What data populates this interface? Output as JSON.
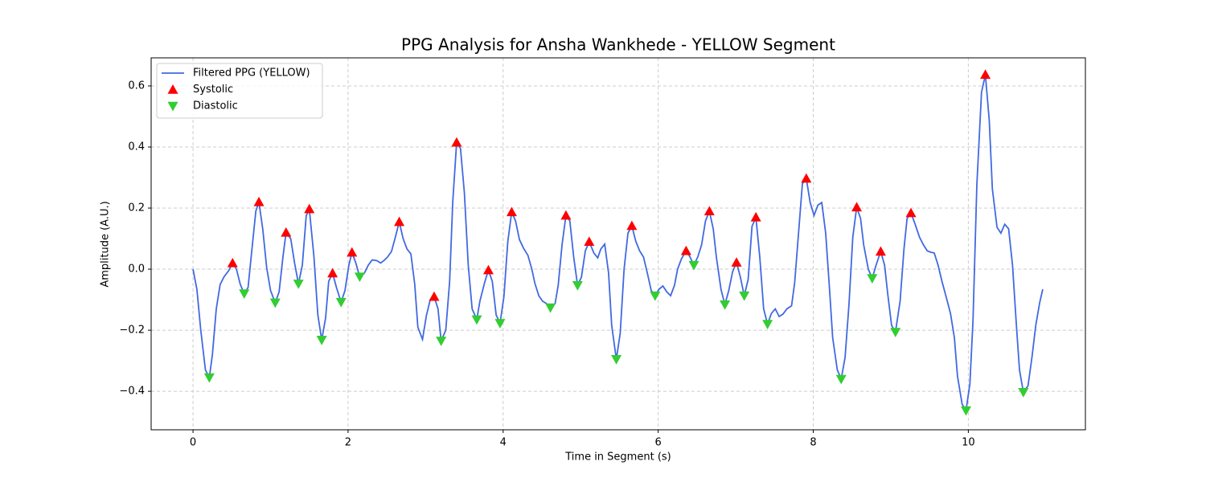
{
  "chart_data": {
    "type": "line",
    "title": "PPG Analysis for Ansha Wankhede - YELLOW Segment",
    "xlabel": "Time in Segment (s)",
    "ylabel": "Amplitude (A.U.)",
    "xlim": [
      -0.54,
      11.51
    ],
    "ylim": [
      -0.526,
      0.692
    ],
    "xticks": [
      0,
      2,
      4,
      6,
      8,
      10
    ],
    "yticks": [
      {
        "value": -0.4,
        "label": "−0.4"
      },
      {
        "value": -0.2,
        "label": "−0.2"
      },
      {
        "value": 0,
        "label": "0.0"
      },
      0.2,
      0.4,
      0.6
    ],
    "grid": true,
    "legend": "upper left",
    "series": [
      {
        "name": "Filtered PPG (YELLOW)",
        "color": "#4169e1",
        "marker": "line",
        "x": [
          0,
          0.05,
          0.1,
          0.16,
          0.21,
          0.25,
          0.3,
          0.35,
          0.4,
          0.46,
          0.51,
          0.56,
          0.61,
          0.66,
          0.71,
          0.76,
          0.81,
          0.85,
          0.9,
          0.95,
          1.0,
          1.06,
          1.11,
          1.16,
          1.2,
          1.26,
          1.31,
          1.36,
          1.41,
          1.46,
          1.5,
          1.56,
          1.61,
          1.66,
          1.71,
          1.75,
          1.8,
          1.85,
          1.91,
          1.96,
          2.01,
          2.05,
          2.1,
          2.15,
          2.21,
          2.26,
          2.31,
          2.37,
          2.42,
          2.47,
          2.51,
          2.56,
          2.61,
          2.66,
          2.71,
          2.76,
          2.81,
          2.86,
          2.9,
          2.96,
          3.01,
          3.06,
          3.11,
          3.16,
          3.2,
          3.26,
          3.31,
          3.35,
          3.4,
          3.45,
          3.5,
          3.55,
          3.6,
          3.66,
          3.7,
          3.76,
          3.81,
          3.86,
          3.91,
          3.96,
          4.01,
          4.06,
          4.11,
          4.16,
          4.21,
          4.26,
          4.32,
          4.37,
          4.41,
          4.46,
          4.51,
          4.56,
          4.61,
          4.67,
          4.71,
          4.76,
          4.81,
          4.86,
          4.91,
          4.96,
          5.01,
          5.06,
          5.11,
          5.17,
          5.22,
          5.26,
          5.31,
          5.36,
          5.4,
          5.46,
          5.51,
          5.56,
          5.61,
          5.66,
          5.71,
          5.76,
          5.81,
          5.86,
          5.91,
          5.96,
          6.01,
          6.06,
          6.11,
          6.16,
          6.21,
          6.25,
          6.3,
          6.36,
          6.41,
          6.46,
          6.51,
          6.56,
          6.61,
          6.66,
          6.71,
          6.75,
          6.81,
          6.86,
          6.91,
          6.96,
          7.01,
          7.06,
          7.11,
          7.16,
          7.21,
          7.26,
          7.31,
          7.36,
          7.41,
          7.46,
          7.51,
          7.56,
          7.61,
          7.66,
          7.72,
          7.76,
          7.81,
          7.86,
          7.91,
          7.96,
          8.01,
          8.06,
          8.11,
          8.16,
          8.21,
          8.25,
          8.31,
          8.36,
          8.41,
          8.46,
          8.51,
          8.56,
          8.61,
          8.65,
          8.71,
          8.76,
          8.81,
          8.87,
          8.92,
          8.96,
          9.01,
          9.06,
          9.12,
          9.17,
          9.21,
          9.26,
          9.31,
          9.37,
          9.42,
          9.47,
          9.52,
          9.56,
          9.61,
          9.66,
          9.71,
          9.77,
          9.82,
          9.86,
          9.92,
          9.97,
          10.02,
          10.06,
          10.11,
          10.17,
          10.22,
          10.27,
          10.31,
          10.37,
          10.42,
          10.47,
          10.52,
          10.57,
          10.62,
          10.66,
          10.71,
          10.77,
          10.82,
          10.87,
          10.92,
          10.96
        ],
        "values": [
          0,
          -0.066,
          -0.2,
          -0.33,
          -0.355,
          -0.28,
          -0.13,
          -0.05,
          -0.025,
          -0.005,
          0.02,
          0,
          -0.05,
          -0.08,
          -0.06,
          0.065,
          0.19,
          0.22,
          0.13,
          0.005,
          -0.07,
          -0.11,
          -0.075,
          0.04,
          0.12,
          0.1,
          0.02,
          -0.048,
          0.013,
          0.175,
          0.197,
          0.04,
          -0.15,
          -0.232,
          -0.16,
          -0.04,
          -0.013,
          -0.06,
          -0.108,
          -0.07,
          0.013,
          0.055,
          0.02,
          -0.025,
          -0.013,
          0.013,
          0.03,
          0.028,
          0.02,
          0.03,
          0.04,
          0.058,
          0.105,
          0.155,
          0.1,
          0.066,
          0.05,
          -0.05,
          -0.19,
          -0.23,
          -0.152,
          -0.1,
          -0.09,
          -0.13,
          -0.235,
          -0.2,
          -0.04,
          0.22,
          0.415,
          0.395,
          0.25,
          0.013,
          -0.13,
          -0.165,
          -0.105,
          -0.045,
          -0.003,
          -0.04,
          -0.15,
          -0.177,
          -0.09,
          0.09,
          0.187,
          0.158,
          0.097,
          0.07,
          0.045,
          0,
          -0.047,
          -0.087,
          -0.105,
          -0.113,
          -0.126,
          -0.113,
          -0.053,
          0.08,
          0.176,
          0.158,
          0.04,
          -0.053,
          -0.026,
          0.06,
          0.09,
          0.053,
          0.037,
          0.066,
          0.082,
          -0.013,
          -0.184,
          -0.295,
          -0.21,
          0,
          0.118,
          0.142,
          0.092,
          0.06,
          0.04,
          -0.013,
          -0.07,
          -0.087,
          -0.066,
          -0.055,
          -0.074,
          -0.087,
          -0.053,
          0,
          0.034,
          0.06,
          0.04,
          0.013,
          0.04,
          0.08,
          0.158,
          0.19,
          0.132,
          0.04,
          -0.066,
          -0.116,
          -0.07,
          -0.008,
          0.022,
          -0.026,
          -0.087,
          -0.034,
          0.14,
          0.17,
          0.04,
          -0.13,
          -0.18,
          -0.145,
          -0.13,
          -0.155,
          -0.147,
          -0.13,
          -0.12,
          -0.045,
          0.118,
          0.28,
          0.297,
          0.218,
          0.176,
          0.21,
          0.218,
          0.118,
          -0.066,
          -0.224,
          -0.33,
          -0.36,
          -0.29,
          -0.118,
          0.105,
          0.203,
          0.166,
          0.08,
          0,
          -0.03,
          0.013,
          0.058,
          0.013,
          -0.08,
          -0.184,
          -0.206,
          -0.105,
          0.066,
          0.166,
          0.184,
          0.15,
          0.105,
          0.08,
          0.06,
          0.055,
          0.053,
          0.013,
          -0.04,
          -0.087,
          -0.145,
          -0.224,
          -0.35,
          -0.442,
          -0.463,
          -0.376,
          -0.17,
          0.276,
          0.579,
          0.637,
          0.487,
          0.263,
          0.137,
          0.118,
          0.147,
          0.132,
          0.013,
          -0.184,
          -0.33,
          -0.403,
          -0.382,
          -0.29,
          -0.184,
          -0.11,
          -0.066
        ]
      },
      {
        "name": "Systolic",
        "color": "#ff0000",
        "marker": "^",
        "x": [
          0.51,
          0.85,
          1.2,
          1.5,
          1.8,
          2.05,
          2.66,
          3.11,
          3.4,
          3.81,
          4.11,
          4.81,
          5.11,
          5.66,
          6.36,
          6.66,
          7.01,
          7.26,
          7.91,
          8.56,
          8.87,
          9.26,
          10.22
        ],
        "values": [
          0.02,
          0.22,
          0.12,
          0.197,
          -0.013,
          0.055,
          0.155,
          -0.09,
          0.415,
          -0.003,
          0.187,
          0.176,
          0.09,
          0.142,
          0.06,
          0.19,
          0.022,
          0.17,
          0.297,
          0.203,
          0.058,
          0.184,
          0.637
        ]
      },
      {
        "name": "Diastolic",
        "color": "#32cd32",
        "marker": "v",
        "x": [
          0.21,
          0.66,
          1.06,
          1.36,
          1.66,
          1.91,
          2.15,
          3.2,
          3.66,
          3.96,
          4.61,
          4.96,
          5.46,
          5.96,
          6.46,
          6.86,
          7.11,
          7.41,
          8.36,
          8.76,
          9.06,
          9.97,
          10.71
        ],
        "values": [
          -0.355,
          -0.08,
          -0.11,
          -0.048,
          -0.232,
          -0.108,
          -0.025,
          -0.235,
          -0.165,
          -0.177,
          -0.126,
          -0.053,
          -0.295,
          -0.087,
          0.013,
          -0.116,
          -0.087,
          -0.18,
          -0.36,
          -0.03,
          -0.206,
          -0.463,
          -0.403
        ]
      }
    ]
  }
}
